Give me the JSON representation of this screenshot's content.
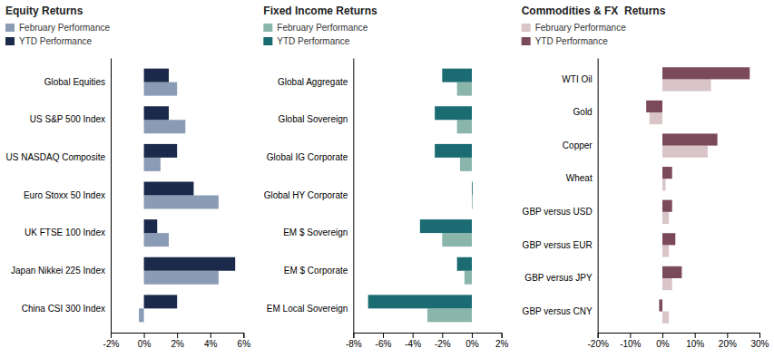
{
  "chart_data": [
    {
      "type": "bar",
      "orientation": "horizontal",
      "title": "Equity Returns",
      "categories": [
        "Global Equities",
        "US S&P 500 Index",
        "US NASDAQ Composite",
        "Euro Stoxx 50 Index",
        "UK FTSE 100 Index",
        "Japan Nikkei 225 Index",
        "China CSI 300 Index"
      ],
      "series": [
        {
          "name": "February Performance",
          "color": "#8A9BB5",
          "values": [
            2.0,
            2.5,
            1.0,
            4.5,
            1.5,
            4.5,
            -0.3
          ]
        },
        {
          "name": "YTD Performance",
          "color": "#1B2A4A",
          "values": [
            1.5,
            1.5,
            2.0,
            3.0,
            0.8,
            5.5,
            2.0
          ]
        }
      ],
      "xlim": [
        -2,
        6
      ],
      "xticks": [
        {
          "value": -2,
          "label": "-2%"
        },
        {
          "value": 0,
          "label": "0%"
        },
        {
          "value": 2,
          "label": "2%"
        },
        {
          "value": 4,
          "label": "4%"
        },
        {
          "value": 6,
          "label": "6%"
        }
      ],
      "legend": "upper left",
      "grid": false
    },
    {
      "type": "bar",
      "orientation": "horizontal",
      "title": "Fixed Income Returns",
      "categories": [
        "Global Aggregate",
        "Global Sovereign",
        "Global IG Corporate",
        "Global HY Corporate",
        "EM $ Sovereign",
        "EM $ Corporate",
        "EM Local Sovereign"
      ],
      "series": [
        {
          "name": "February Performance",
          "color": "#8AB5AB",
          "values": [
            -1.0,
            -1.0,
            -0.8,
            0.05,
            -2.0,
            -0.5,
            -3.0
          ]
        },
        {
          "name": "YTD Performance",
          "color": "#1B6B72",
          "values": [
            -2.0,
            -2.5,
            -2.5,
            0.05,
            -3.5,
            -1.0,
            -7.0
          ]
        }
      ],
      "xlim": [
        -8,
        2
      ],
      "xticks": [
        {
          "value": -8,
          "label": "-8%"
        },
        {
          "value": -6,
          "label": "-6%"
        },
        {
          "value": -4,
          "label": "-4%"
        },
        {
          "value": -2,
          "label": "-2%"
        },
        {
          "value": 0,
          "label": "0%"
        },
        {
          "value": 2,
          "label": "2%"
        }
      ],
      "legend": "upper left",
      "grid": false
    },
    {
      "type": "bar",
      "orientation": "horizontal",
      "title": "Commodities & FX  Returns",
      "categories": [
        "WTI Oil",
        "Gold",
        "Copper",
        "Wheat",
        "GBP versus USD",
        "GBP versus EUR",
        "GBP versus JPY",
        "GBP versus CNY"
      ],
      "series": [
        {
          "name": "February Performance",
          "color": "#D9C4C8",
          "values": [
            15.0,
            -4.0,
            14.0,
            1.0,
            2.0,
            2.0,
            3.0,
            2.0
          ]
        },
        {
          "name": "YTD Performance",
          "color": "#7B4A5A",
          "values": [
            27.0,
            -5.0,
            17.0,
            3.0,
            3.0,
            4.0,
            6.0,
            -1.0
          ]
        }
      ],
      "xlim": [
        -20,
        30
      ],
      "xticks": [
        {
          "value": -20,
          "label": "-20%"
        },
        {
          "value": -10,
          "label": "-10%"
        },
        {
          "value": 0,
          "label": "0%"
        },
        {
          "value": 10,
          "label": "10%"
        },
        {
          "value": 20,
          "label": "20%"
        },
        {
          "value": 30,
          "label": "30%"
        }
      ],
      "legend": "upper left",
      "grid": false
    }
  ]
}
